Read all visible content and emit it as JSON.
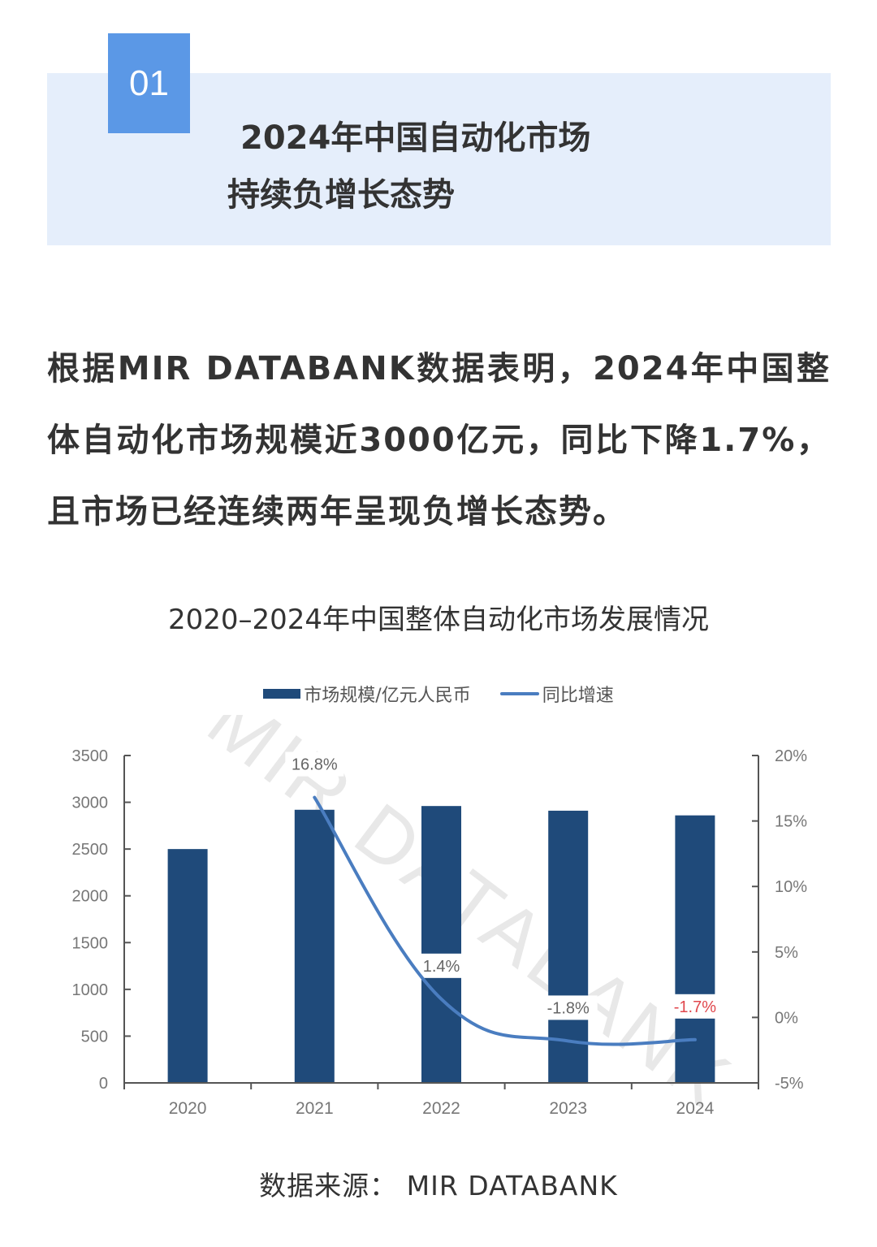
{
  "header": {
    "number": "01",
    "title_line1": "2024年中国自动化市场",
    "title_line2": "持续负增长态势"
  },
  "body": {
    "paragraph": "根据MIR DATABANK数据表明，2024年中国整体自动化市场规模近3000亿元，同比下降1.7%，且市场已经连续两年呈现负增长态势。"
  },
  "chart": {
    "title": "2020–2024年中国整体自动化市场发展情况",
    "legend": {
      "bar_label": "市场规模/亿元人民币",
      "line_label": "同比增速"
    },
    "watermark": "MIR DATABANK",
    "colors": {
      "bar": "#1f4a7a",
      "line": "#4a7dc0",
      "highlight_label": "#e0474c",
      "header_band": "#e5eefb",
      "number_box": "#5b98e6"
    }
  },
  "source": "数据来源：  MIR DATABANK",
  "chart_data": {
    "type": "bar",
    "title": "2020–2024年中国整体自动化市场发展情况",
    "categories": [
      "2020",
      "2021",
      "2022",
      "2023",
      "2024"
    ],
    "series": [
      {
        "name": "市场规模/亿元人民币",
        "type": "bar",
        "axis": "left",
        "values": [
          2500,
          2920,
          2960,
          2910,
          2860
        ]
      },
      {
        "name": "同比增速",
        "type": "line",
        "axis": "right",
        "values": [
          null,
          16.8,
          1.4,
          -1.8,
          -1.7
        ],
        "labels": [
          "",
          "16.8%",
          "1.4%",
          "-1.8%",
          "-1.7%"
        ]
      }
    ],
    "left_axis": {
      "ylim": [
        0,
        3500
      ],
      "ticks": [
        "0",
        "500",
        "1000",
        "1500",
        "2000",
        "2500",
        "3000",
        "3500"
      ]
    },
    "right_axis": {
      "ylim": [
        -5,
        20
      ],
      "ticks": [
        "-5%",
        "0%",
        "5%",
        "10%",
        "15%",
        "20%"
      ]
    },
    "xlabel": "",
    "ylabel": "",
    "grid": false,
    "legend_position": "top"
  }
}
